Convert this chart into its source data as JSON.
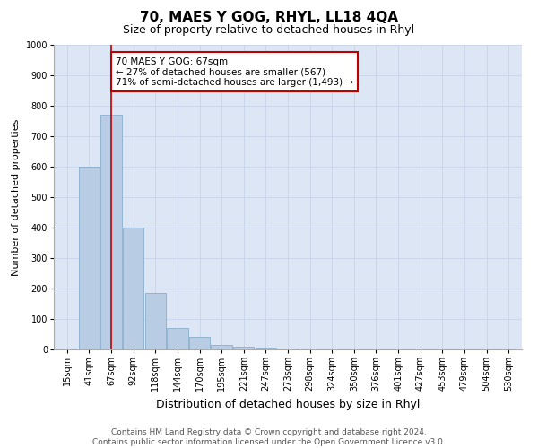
{
  "title": "70, MAES Y GOG, RHYL, LL18 4QA",
  "subtitle": "Size of property relative to detached houses in Rhyl",
  "xlabel": "Distribution of detached houses by size in Rhyl",
  "ylabel": "Number of detached properties",
  "categories": [
    "15sqm",
    "41sqm",
    "67sqm",
    "92sqm",
    "118sqm",
    "144sqm",
    "170sqm",
    "195sqm",
    "221sqm",
    "247sqm",
    "273sqm",
    "298sqm",
    "324sqm",
    "350sqm",
    "376sqm",
    "401sqm",
    "427sqm",
    "453sqm",
    "479sqm",
    "504sqm",
    "530sqm"
  ],
  "values": [
    2,
    600,
    770,
    400,
    185,
    70,
    40,
    15,
    10,
    5,
    2,
    0,
    0,
    0,
    0,
    0,
    0,
    0,
    0,
    0,
    0
  ],
  "bar_color": "#b8cce4",
  "bar_edge_color": "#7da6c8",
  "marker_index": 2,
  "marker_line_color": "#c00000",
  "annotation_text": "70 MAES Y GOG: 67sqm\n← 27% of detached houses are smaller (567)\n71% of semi-detached houses are larger (1,493) →",
  "annotation_box_color": "#ffffff",
  "annotation_box_edge": "#c00000",
  "ylim": [
    0,
    1000
  ],
  "yticks": [
    0,
    100,
    200,
    300,
    400,
    500,
    600,
    700,
    800,
    900,
    1000
  ],
  "grid_color": "#c8d4e8",
  "background_color": "#dce6f5",
  "footnote": "Contains HM Land Registry data © Crown copyright and database right 2024.\nContains public sector information licensed under the Open Government Licence v3.0.",
  "title_fontsize": 11,
  "subtitle_fontsize": 9,
  "xlabel_fontsize": 9,
  "ylabel_fontsize": 8,
  "tick_fontsize": 7,
  "footnote_fontsize": 6.5
}
